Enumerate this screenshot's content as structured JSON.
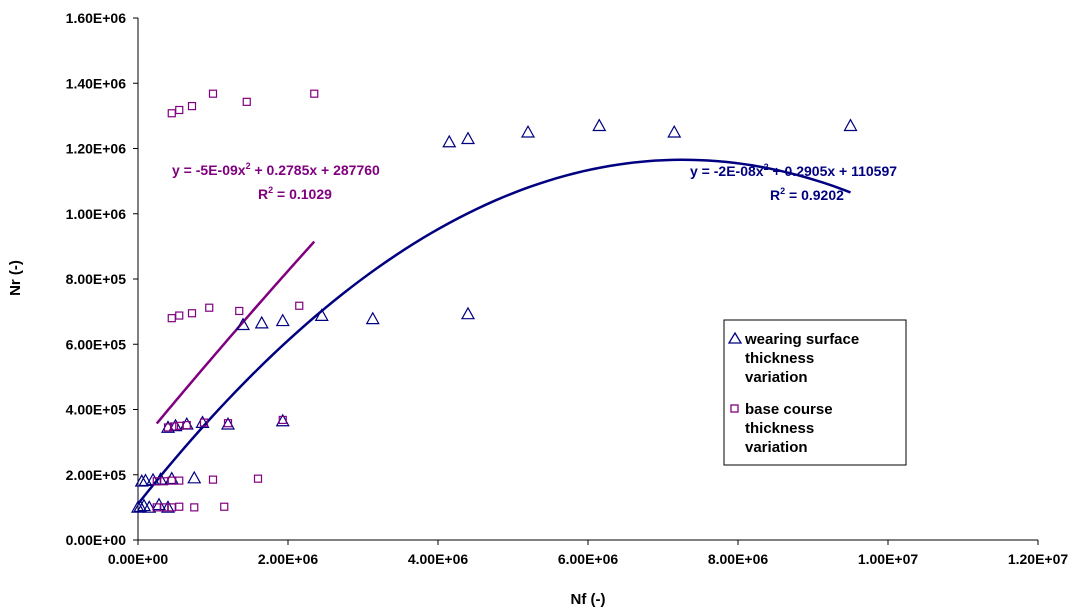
{
  "chart_data": {
    "type": "scatter",
    "xlabel": "Nf (-)",
    "ylabel": "Nr (-)",
    "xlim": [
      0,
      12000000
    ],
    "ylim": [
      0,
      1600000
    ],
    "x_ticks": [
      "0.00E+00",
      "2.00E+06",
      "4.00E+06",
      "6.00E+06",
      "8.00E+06",
      "1.00E+07",
      "1.20E+07"
    ],
    "y_ticks": [
      "0.00E+00",
      "2.00E+05",
      "4.00E+05",
      "6.00E+05",
      "8.00E+05",
      "1.00E+06",
      "1.20E+06",
      "1.40E+06",
      "1.60E+06"
    ],
    "grid": false,
    "legend_position": "right",
    "series": [
      {
        "name": "wearing surface thickness variation",
        "marker": "triangle",
        "color": "#000080",
        "points": [
          [
            0,
            100000
          ],
          [
            30000,
            102000
          ],
          [
            80000,
            105000
          ],
          [
            150000,
            100000
          ],
          [
            280000,
            108000
          ],
          [
            400000,
            100000
          ],
          [
            50000,
            180000
          ],
          [
            100000,
            182000
          ],
          [
            200000,
            184000
          ],
          [
            300000,
            186000
          ],
          [
            450000,
            188000
          ],
          [
            750000,
            190000
          ],
          [
            400000,
            345000
          ],
          [
            500000,
            350000
          ],
          [
            650000,
            355000
          ],
          [
            860000,
            360000
          ],
          [
            1200000,
            355000
          ],
          [
            1930000,
            365000
          ],
          [
            1400000,
            660000
          ],
          [
            1650000,
            665000
          ],
          [
            1930000,
            672000
          ],
          [
            2450000,
            688000
          ],
          [
            3130000,
            678000
          ],
          [
            4400000,
            693000
          ],
          [
            4150000,
            1220000
          ],
          [
            4400000,
            1230000
          ],
          [
            5200000,
            1250000
          ],
          [
            6150000,
            1270000
          ],
          [
            7150000,
            1250000
          ],
          [
            9500000,
            1270000
          ]
        ],
        "trendline": {
          "a": -2e-08,
          "b": 0.2905,
          "c": 110597,
          "x_range": [
            0,
            9500000
          ],
          "equation_label": "y = -2E-08x",
          "equation_rest": " + 0.2905x + 110597",
          "r2_label": "R",
          "r2_value": " = 0.9202"
        }
      },
      {
        "name": "base course thickness variation",
        "marker": "square",
        "color": "#800080",
        "points": [
          [
            250000,
            100000
          ],
          [
            350000,
            100000
          ],
          [
            450000,
            100000
          ],
          [
            550000,
            102000
          ],
          [
            750000,
            100000
          ],
          [
            1150000,
            102000
          ],
          [
            250000,
            180000
          ],
          [
            350000,
            180000
          ],
          [
            450000,
            182000
          ],
          [
            550000,
            182000
          ],
          [
            1000000,
            185000
          ],
          [
            1600000,
            188000
          ],
          [
            400000,
            345000
          ],
          [
            480000,
            348000
          ],
          [
            550000,
            350000
          ],
          [
            650000,
            352000
          ],
          [
            880000,
            360000
          ],
          [
            1200000,
            358000
          ],
          [
            1930000,
            368000
          ],
          [
            450000,
            680000
          ],
          [
            550000,
            688000
          ],
          [
            720000,
            695000
          ],
          [
            950000,
            712000
          ],
          [
            1350000,
            702000
          ],
          [
            2150000,
            718000
          ],
          [
            450000,
            1308000
          ],
          [
            550000,
            1318000
          ],
          [
            720000,
            1330000
          ],
          [
            1000000,
            1368000
          ],
          [
            1450000,
            1343000
          ],
          [
            2350000,
            1368000
          ]
        ],
        "trendline": {
          "a": -5e-09,
          "b": 0.2785,
          "c": 287760,
          "x_range": [
            250000,
            2350000
          ],
          "equation_label": "y = -5E-09x",
          "equation_rest": " + 0.2785x + 287760",
          "r2_label": "R",
          "r2_value": " = 0.1029"
        }
      }
    ],
    "legend": [
      {
        "label_lines": [
          "wearing surface",
          "thickness",
          "variation"
        ],
        "marker": "triangle",
        "color": "#000080"
      },
      {
        "label_lines": [
          "base course",
          "thickness",
          "variation"
        ],
        "marker": "square",
        "color": "#800080"
      }
    ]
  }
}
